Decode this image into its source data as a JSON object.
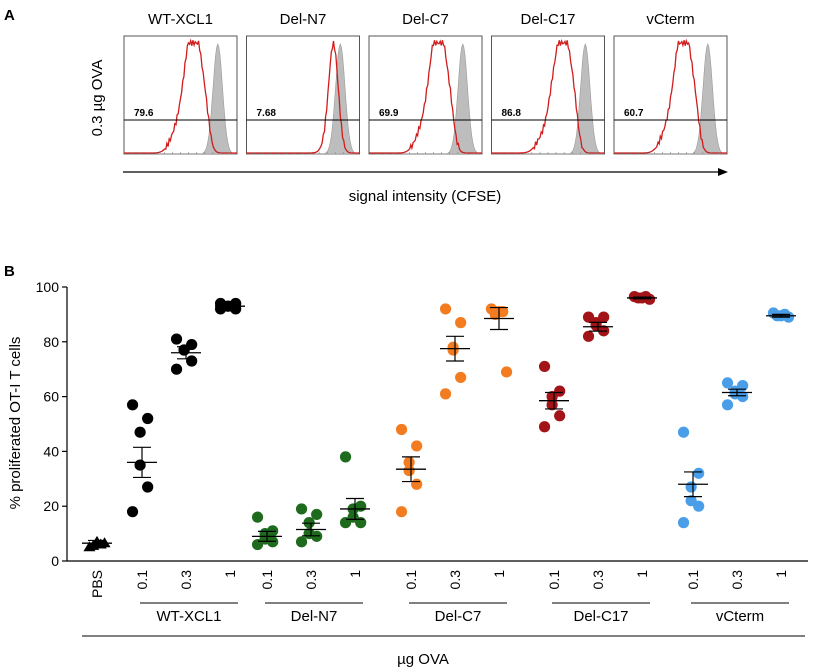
{
  "panel_a": {
    "letter": "A",
    "row_label": "0.3 µg OVA",
    "x_axis_label": "signal intensity (CFSE)",
    "histograms": [
      {
        "title": "WT-XCL1",
        "gate_value": "79.6",
        "profile": "mid"
      },
      {
        "title": "Del-N7",
        "gate_value": "7.68",
        "profile": "none"
      },
      {
        "title": "Del-C7",
        "gate_value": "69.9",
        "profile": "mid"
      },
      {
        "title": "Del-C17",
        "gate_value": "86.8",
        "profile": "high"
      },
      {
        "title": "vCterm",
        "gate_value": "60.7",
        "profile": "mid"
      }
    ]
  },
  "panel_b": {
    "letter": "B",
    "chart_data": {
      "type": "scatter",
      "title": "",
      "ylabel": "% proliferated OT-I T cells",
      "xlabel": "µg OVA",
      "ylim": [
        0,
        100
      ],
      "yticks": [
        0,
        20,
        40,
        60,
        80,
        100
      ],
      "groups": [
        {
          "name": "PBS",
          "color": "#000000",
          "marker": "triangle",
          "series": [
            {
              "dose": "PBS",
              "mean": 6.5,
              "sem": 1.0,
              "values": [
                5,
                6,
                7,
                5.5,
                6.5
              ]
            }
          ]
        },
        {
          "name": "WT-XCL1",
          "color": "#000000",
          "marker": "circle",
          "series": [
            {
              "dose": "0.1",
              "mean": 36,
              "sem": 5.5,
              "values": [
                57,
                52,
                47,
                35,
                27,
                18
              ]
            },
            {
              "dose": "0.3",
              "mean": 76,
              "sem": 2.2,
              "values": [
                81,
                79,
                77,
                77,
                73,
                70
              ]
            },
            {
              "dose": "1",
              "mean": 93,
              "sem": 0.5,
              "values": [
                94,
                94,
                93,
                93,
                92,
                92
              ]
            }
          ]
        },
        {
          "name": "Del-N7",
          "color": "#1e6b1e",
          "marker": "circle",
          "series": [
            {
              "dose": "0.1",
              "mean": 9,
              "sem": 1.8,
              "values": [
                16,
                11,
                10,
                8,
                7,
                6
              ]
            },
            {
              "dose": "0.3",
              "mean": 11.5,
              "sem": 2.3,
              "values": [
                19,
                17,
                14,
                10,
                9,
                7
              ]
            },
            {
              "dose": "1",
              "mean": 19,
              "sem": 3.8,
              "values": [
                38,
                20,
                19,
                16,
                14,
                14
              ]
            }
          ]
        },
        {
          "name": "Del-C7",
          "color": "#f47c20",
          "marker": "circle",
          "series": [
            {
              "dose": "0.1",
              "mean": 33.5,
              "sem": 4.5,
              "values": [
                48,
                42,
                36,
                33,
                28,
                18
              ]
            },
            {
              "dose": "0.3",
              "mean": 77.5,
              "sem": 4.5,
              "values": [
                92,
                87,
                78,
                77,
                67,
                61
              ]
            },
            {
              "dose": "1",
              "mean": 88.5,
              "sem": 4.0,
              "values": [
                92,
                91,
                91,
                90,
                69
              ]
            }
          ]
        },
        {
          "name": "Del-C17",
          "color": "#a31418",
          "marker": "circle",
          "series": [
            {
              "dose": "0.1",
              "mean": 58.5,
              "sem": 3.0,
              "values": [
                71,
                62,
                60,
                57,
                53,
                49
              ]
            },
            {
              "dose": "0.3",
              "mean": 85.5,
              "sem": 1.6,
              "values": [
                89,
                89,
                87,
                86,
                84,
                82
              ]
            },
            {
              "dose": "1",
              "mean": 96,
              "sem": 0.3,
              "values": [
                96.5,
                96.5,
                96,
                96,
                95.5
              ]
            }
          ]
        },
        {
          "name": "vCterm",
          "color": "#4a9ee8",
          "marker": "circle",
          "series": [
            {
              "dose": "0.1",
              "mean": 28,
              "sem": 4.5,
              "values": [
                47,
                32,
                27,
                22,
                20,
                14
              ]
            },
            {
              "dose": "0.3",
              "mean": 61.5,
              "sem": 1.2,
              "values": [
                65,
                64,
                62,
                61,
                60,
                57
              ]
            },
            {
              "dose": "1",
              "mean": 89.5,
              "sem": 0.5,
              "values": [
                90.5,
                90,
                89.5,
                89.5,
                89
              ]
            }
          ]
        }
      ]
    }
  }
}
